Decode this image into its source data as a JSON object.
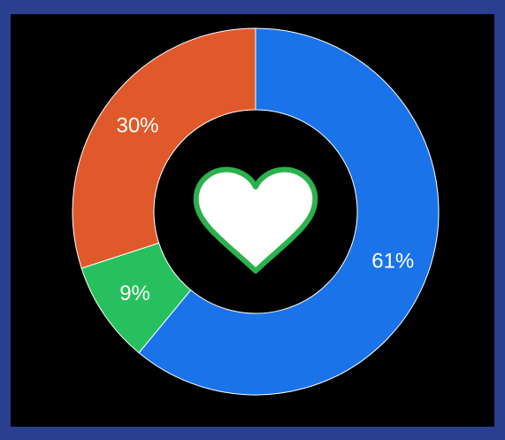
{
  "chart_data": {
    "type": "pie",
    "donut": true,
    "slices": [
      {
        "label": "61%",
        "value": 61,
        "color": "#1a73e8"
      },
      {
        "label": "9%",
        "value": 9,
        "color": "#27c05e"
      },
      {
        "label": "30%",
        "value": 30,
        "color": "#e0592a"
      }
    ],
    "start_angle_deg": 0,
    "direction": "clockwise",
    "center_icon": "heart-icon",
    "center_icon_fill": "#ffffff",
    "center_icon_stroke": "#2bb24c"
  },
  "colors": {
    "frame": "#2a3f8f",
    "background": "#000000"
  }
}
